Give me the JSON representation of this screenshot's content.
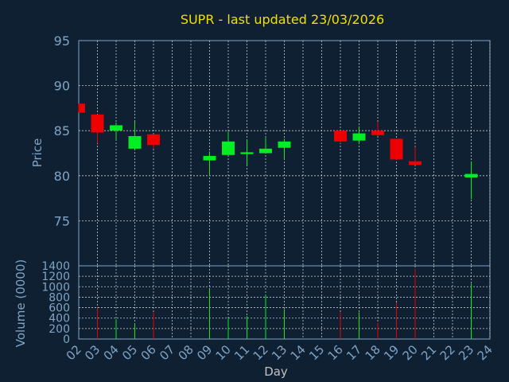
{
  "chart_data": [
    {
      "type": "candlestick",
      "title": "SUPR - last updated 23/03/2026",
      "ylabel": "Price",
      "xlabel": "",
      "ylim": [
        70,
        95
      ],
      "yticks": [
        95,
        90,
        85,
        80,
        75
      ],
      "grid": true,
      "colors": {
        "up": "#00ee22",
        "down": "#ee0000"
      },
      "candles": [
        {
          "day": "02",
          "open": 88.0,
          "high": 88.0,
          "low": 87.0,
          "close": 87.0
        },
        {
          "day": "03",
          "open": 86.8,
          "high": 86.8,
          "low": 83.6,
          "close": 84.8
        },
        {
          "day": "04",
          "open": 85.0,
          "high": 85.9,
          "low": 84.0,
          "close": 85.6
        },
        {
          "day": "05",
          "open": 83.0,
          "high": 86.0,
          "low": 83.0,
          "close": 84.4
        },
        {
          "day": "06",
          "open": 84.6,
          "high": 84.6,
          "low": 83.0,
          "close": 83.4
        },
        {
          "day": "09",
          "open": 81.7,
          "high": 82.7,
          "low": 80.0,
          "close": 82.2
        },
        {
          "day": "10",
          "open": 82.3,
          "high": 84.9,
          "low": 82.3,
          "close": 83.8
        },
        {
          "day": "11",
          "open": 82.4,
          "high": 84.0,
          "low": 81.2,
          "close": 82.6
        },
        {
          "day": "12",
          "open": 82.5,
          "high": 84.2,
          "low": 82.5,
          "close": 83.0
        },
        {
          "day": "13",
          "open": 83.1,
          "high": 84.1,
          "low": 81.8,
          "close": 83.8
        },
        {
          "day": "16",
          "open": 85.0,
          "high": 85.0,
          "low": 83.6,
          "close": 83.8
        },
        {
          "day": "17",
          "open": 83.9,
          "high": 85.5,
          "low": 83.5,
          "close": 84.7
        },
        {
          "day": "18",
          "open": 85.0,
          "high": 86.0,
          "low": 84.4,
          "close": 84.5
        },
        {
          "day": "19",
          "open": 84.1,
          "high": 84.1,
          "low": 81.7,
          "close": 81.8
        },
        {
          "day": "20",
          "open": 81.6,
          "high": 83.2,
          "low": 81.2,
          "close": 81.2
        },
        {
          "day": "23",
          "open": 79.8,
          "high": 81.6,
          "low": 77.4,
          "close": 80.2
        }
      ]
    },
    {
      "type": "bar",
      "ylabel": "Volume (0000)",
      "xlabel": "Day",
      "ylim": [
        0,
        1400
      ],
      "yticks": [
        1400,
        1200,
        1000,
        800,
        600,
        400,
        200,
        0
      ],
      "grid": true,
      "categories": [
        "02",
        "03",
        "04",
        "05",
        "06",
        "07",
        "08",
        "09",
        "10",
        "11",
        "12",
        "13",
        "14",
        "15",
        "16",
        "17",
        "18",
        "19",
        "20",
        "21",
        "22",
        "23",
        "24"
      ],
      "series": [
        {
          "values": [
            0,
            600,
            380,
            300,
            510,
            0,
            0,
            950,
            390,
            440,
            850,
            570,
            0,
            0,
            510,
            510,
            310,
            700,
            1340,
            0,
            0,
            1060,
            0
          ]
        }
      ],
      "bar_colors": [
        "",
        "#ee0000",
        "#00ee22",
        "#00ee22",
        "#ee0000",
        "",
        "",
        "#00ee22",
        "#00ee22",
        "#00ee22",
        "#00ee22",
        "#00ee22",
        "",
        "",
        "#ee0000",
        "#00ee22",
        "#ee0000",
        "#ee0000",
        "#ee0000",
        "",
        "",
        "#00ee22",
        ""
      ]
    }
  ]
}
